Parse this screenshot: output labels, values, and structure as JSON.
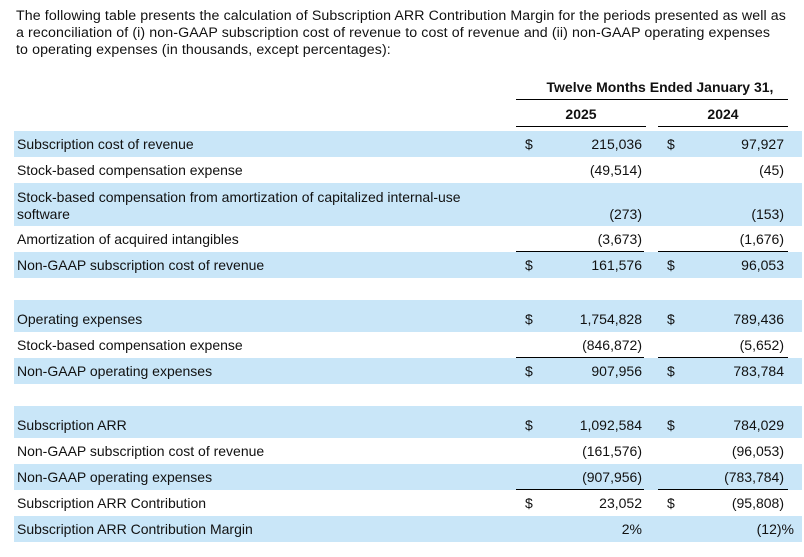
{
  "intro_text": "The following table presents the calculation of Subscription ARR Contribution Margin for the periods presented as well as a reconciliation of (i) non-GAAP subscription cost of revenue to cost of revenue and (ii) non-GAAP operating expenses to operating expenses (in thousands, except percentages):",
  "header": {
    "period": "Twelve Months Ended January 31,",
    "year1": "2025",
    "year2": "2024"
  },
  "rows": [
    {
      "label": "Subscription cost of revenue",
      "d1": "$",
      "v1": "215,036",
      "d2": "$",
      "v2": "97,927"
    },
    {
      "label": "Stock-based compensation expense",
      "d1": "",
      "v1": "(49,514)",
      "d2": "",
      "v2": "(45)"
    },
    {
      "label": "Stock-based compensation from amortization of capitalized internal-use software",
      "d1": "",
      "v1": "(273)",
      "d2": "",
      "v2": "(153)"
    },
    {
      "label": "Amortization of acquired intangibles",
      "d1": "",
      "v1": "(3,673)",
      "d2": "",
      "v2": "(1,676)"
    },
    {
      "label": "Non-GAAP subscription cost of revenue",
      "d1": "$",
      "v1": "161,576",
      "d2": "$",
      "v2": "96,053"
    },
    {
      "label": "Operating expenses",
      "d1": "$",
      "v1": "1,754,828",
      "d2": "$",
      "v2": "789,436"
    },
    {
      "label": "Stock-based compensation expense",
      "d1": "",
      "v1": "(846,872)",
      "d2": "",
      "v2": "(5,652)"
    },
    {
      "label": "Non-GAAP operating expenses",
      "d1": "$",
      "v1": "907,956",
      "d2": "$",
      "v2": "783,784"
    },
    {
      "label": "Subscription ARR",
      "d1": "$",
      "v1": "1,092,584",
      "d2": "$",
      "v2": "784,029"
    },
    {
      "label": "Non-GAAP subscription cost of revenue",
      "d1": "",
      "v1": "(161,576)",
      "d2": "",
      "v2": "(96,053)"
    },
    {
      "label": "Non-GAAP operating expenses",
      "d1": "",
      "v1": "(907,956)",
      "d2": "",
      "v2": "(783,784)"
    },
    {
      "label": "Subscription ARR Contribution",
      "d1": "$",
      "v1": "23,052",
      "d2": "$",
      "v2": "(95,808)"
    },
    {
      "label": "Subscription ARR Contribution Margin",
      "d1": "",
      "v1": "2",
      "d2": "",
      "v2": "(12)",
      "pct": "%"
    }
  ]
}
